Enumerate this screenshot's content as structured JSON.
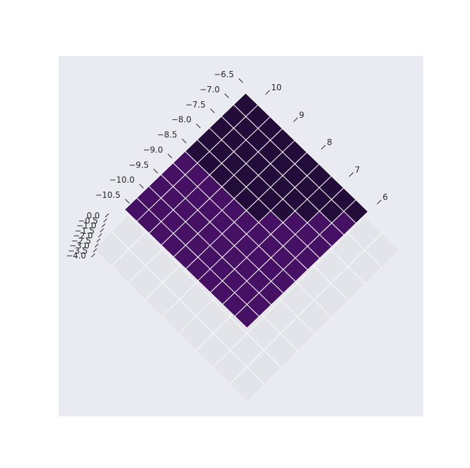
{
  "chart_data": {
    "type": "surface3d",
    "colormap": "viridis-dark",
    "colors": {
      "axes_background": "#eaeaf2",
      "pane": "#e3e3ea",
      "grid": "#ffffff",
      "edge": "#ffffff",
      "tick_text": "#262626"
    },
    "surface": {
      "x_range": [
        -10.5,
        -6.5
      ],
      "y_range": [
        6,
        10
      ],
      "grid_size": 10,
      "dark_rows_near_x_max": 5,
      "dark_fill": "#240c3a",
      "light_fill": "#461065"
    },
    "axes": {
      "x": {
        "ticks": [
          -10.5,
          -10.0,
          -9.5,
          -9.0,
          -8.5,
          -8.0,
          -7.5,
          -7.0,
          -6.5
        ],
        "tick_labels": [
          "−10.5",
          "−10.0",
          "−9.5",
          "−9.0",
          "−8.5",
          "−8.0",
          "−7.5",
          "−7.0",
          "−6.5"
        ],
        "range": [
          -10.5,
          -6.5
        ]
      },
      "y": {
        "ticks": [
          6,
          7,
          8,
          9,
          10
        ],
        "tick_labels": [
          "6",
          "7",
          "8",
          "9",
          "10"
        ],
        "range": [
          6,
          10
        ]
      },
      "z": {
        "ticks": [
          0.0,
          -0.5,
          -1.0,
          -1.5,
          -2.0,
          -2.5,
          -3.0,
          -3.5,
          -4.0
        ],
        "tick_labels": [
          "0.0",
          "−0.5",
          "−1.0",
          "−1.5",
          "−2.0",
          "−2.5",
          "−3.0",
          "−3.5",
          "−4.0"
        ],
        "range": [
          -4.0,
          0.0
        ]
      }
    },
    "title": "",
    "xlabel": "",
    "ylabel": "",
    "zlabel": ""
  }
}
